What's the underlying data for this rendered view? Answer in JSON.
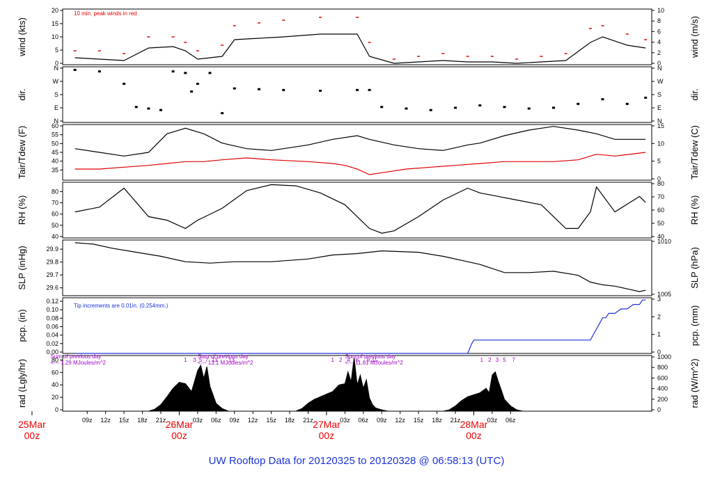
{
  "title": "UW Rooftop Data for 20120325  to  20120328 @ 06:58:13  (UTC)",
  "colors": {
    "peak": "#e00000",
    "dew": "#e00000",
    "precip": "#1a33d6",
    "title": "#1a33d6",
    "annot": "#a000c8"
  },
  "chart_data": [
    {
      "type": "line",
      "id": "wind",
      "ylabel": "wind (kts)",
      "ylabel_right": "wind (m/s)",
      "ylim": [
        0,
        20
      ],
      "yticks": [
        "0",
        "5",
        "10",
        "15",
        "20"
      ],
      "yticks_right": [
        "0",
        "2",
        "4",
        "6",
        "8",
        "10"
      ],
      "annotation": "10 min. peak winds in red",
      "series": [
        {
          "name": "wind",
          "x": [
            0,
            4,
            8,
            12,
            16,
            18,
            20,
            24,
            26,
            30,
            34,
            40,
            46,
            48,
            52,
            56,
            60,
            64,
            68,
            72,
            76,
            80,
            84,
            86,
            90,
            93
          ],
          "y": [
            2.5,
            2,
            1.5,
            6,
            6.5,
            5,
            2,
            3,
            9,
            9.5,
            10,
            11,
            11,
            3,
            0.5,
            1,
            1.5,
            1,
            1,
            0.5,
            1,
            1.5,
            8,
            10,
            7,
            6
          ]
        },
        {
          "name": "peak",
          "x": [
            0,
            4,
            8,
            12,
            16,
            18,
            20,
            24,
            26,
            30,
            34,
            40,
            46,
            48,
            52,
            56,
            60,
            64,
            68,
            72,
            76,
            80,
            84,
            86,
            90,
            93
          ],
          "y": [
            5,
            5,
            4,
            10,
            10,
            8,
            5,
            7,
            14,
            15,
            16,
            17,
            17,
            8,
            2,
            3,
            4,
            3,
            3,
            2,
            3,
            4,
            13,
            14,
            11,
            9
          ]
        }
      ]
    },
    {
      "type": "scatter",
      "id": "dir",
      "ylabel": "dir.",
      "ylabel_right": "dir.",
      "ylim": [
        0,
        360
      ],
      "yticks": [
        "N",
        "E",
        "S",
        "W",
        "N"
      ],
      "yticks_right": [
        "N",
        "E",
        "S",
        "W",
        "N"
      ],
      "series": [
        {
          "name": "dir",
          "x": [
            0,
            4,
            8,
            10,
            12,
            14,
            16,
            18,
            19,
            20,
            22,
            24,
            26,
            30,
            34,
            40,
            46,
            48,
            50,
            54,
            58,
            62,
            66,
            70,
            74,
            78,
            82,
            86,
            90,
            93
          ],
          "y": [
            340,
            330,
            250,
            100,
            90,
            80,
            330,
            320,
            200,
            250,
            320,
            60,
            220,
            215,
            210,
            205,
            210,
            210,
            100,
            90,
            80,
            95,
            110,
            100,
            90,
            95,
            120,
            150,
            120,
            160
          ]
        }
      ]
    },
    {
      "type": "line",
      "id": "temp",
      "ylabel": "Tair/Tdew (F)",
      "ylabel_right": "Tair/Tdew (C)",
      "ylim": [
        30,
        60
      ],
      "yticks": [
        "35",
        "40",
        "45",
        "50",
        "55",
        "60"
      ],
      "yticks_right": [
        "0",
        "5",
        "10",
        "15"
      ],
      "series": [
        {
          "name": "Tair",
          "x": [
            0,
            4,
            8,
            12,
            15,
            18,
            21,
            24,
            28,
            32,
            38,
            42,
            46,
            48,
            52,
            56,
            60,
            64,
            66,
            70,
            74,
            78,
            82,
            85,
            88,
            93
          ],
          "y": [
            47,
            45,
            43,
            45,
            55,
            58,
            55,
            50,
            47,
            46,
            49,
            52,
            54,
            52,
            49,
            47,
            46,
            49,
            50,
            54,
            57,
            59,
            57,
            55,
            52,
            52
          ]
        },
        {
          "name": "Tdew",
          "x": [
            0,
            4,
            8,
            12,
            15,
            18,
            21,
            24,
            28,
            32,
            38,
            42,
            44,
            46,
            48,
            50,
            54,
            58,
            62,
            66,
            70,
            74,
            78,
            82,
            85,
            88,
            93
          ],
          "y": [
            36,
            36,
            37,
            38,
            39,
            40,
            40,
            41,
            42,
            41,
            40,
            39,
            38,
            36,
            33,
            34,
            36,
            37,
            38,
            39,
            40,
            40,
            40,
            41,
            44,
            43,
            45
          ]
        }
      ]
    },
    {
      "type": "line",
      "id": "rh",
      "ylabel": "RH (%)",
      "ylabel_right": "RH (%)",
      "ylim": [
        40,
        87
      ],
      "yticks": [
        "40",
        "50",
        "60",
        "70",
        "80"
      ],
      "yticks_right": [
        "40",
        "50",
        "60",
        "70",
        "80"
      ],
      "series": [
        {
          "name": "RH",
          "x": [
            0,
            4,
            8,
            12,
            15,
            18,
            20,
            22,
            24,
            28,
            32,
            36,
            40,
            44,
            46,
            48,
            50,
            52,
            56,
            60,
            64,
            66,
            68,
            72,
            76,
            78,
            80,
            82,
            84,
            85,
            88,
            92,
            93
          ],
          "y": [
            62,
            66,
            82,
            58,
            55,
            48,
            55,
            60,
            65,
            80,
            85,
            84,
            78,
            68,
            58,
            48,
            44,
            46,
            58,
            72,
            82,
            78,
            76,
            72,
            68,
            58,
            48,
            48,
            62,
            83,
            62,
            75,
            70
          ]
        }
      ]
    },
    {
      "type": "line",
      "id": "slp",
      "ylabel": "SLP (inHg)",
      "ylabel_right": "SLP (hPa)",
      "ylim": [
        29.55,
        29.96
      ],
      "yticks": [
        "29.6",
        "29.7",
        "29.8",
        "29.9"
      ],
      "yticks_right": [
        "1005",
        "1010"
      ],
      "series": [
        {
          "name": "SLP",
          "x": [
            0,
            3,
            6,
            10,
            14,
            18,
            22,
            26,
            32,
            38,
            42,
            46,
            50,
            56,
            60,
            64,
            66,
            70,
            74,
            78,
            82,
            84,
            86,
            88,
            90,
            92,
            93
          ],
          "y": [
            29.94,
            29.93,
            29.9,
            29.87,
            29.84,
            29.8,
            29.79,
            29.8,
            29.8,
            29.82,
            29.85,
            29.86,
            29.88,
            29.87,
            29.84,
            29.8,
            29.78,
            29.72,
            29.72,
            29.73,
            29.7,
            29.65,
            29.63,
            29.62,
            29.6,
            29.58,
            29.59
          ]
        }
      ]
    },
    {
      "type": "line",
      "id": "pcp",
      "ylabel": "pcp. (in)",
      "ylabel_right": "pcp. (mm)",
      "ylim": [
        0,
        0.125
      ],
      "yticks": [
        "0.00",
        "0.02",
        "0.04",
        "0.06",
        "0.08",
        "0.10",
        "0.12"
      ],
      "yticks_right": [
        "0",
        "1",
        "2",
        "3"
      ],
      "annotation": "Tip increments are 0.01in. (0.254mm.)",
      "series": [
        {
          "name": "pcp",
          "x": [
            0,
            64,
            64.3,
            64.6,
            65,
            66,
            84,
            84.4,
            84.8,
            85.2,
            85.6,
            86,
            86.5,
            87,
            88,
            89,
            90,
            91,
            92,
            92.5,
            93
          ],
          "y": [
            0,
            0,
            0.01,
            0.02,
            0.03,
            0.03,
            0.03,
            0.04,
            0.05,
            0.06,
            0.07,
            0.08,
            0.08,
            0.09,
            0.09,
            0.1,
            0.1,
            0.11,
            0.11,
            0.12,
            0.12
          ]
        }
      ]
    },
    {
      "type": "area",
      "id": "rad",
      "ylabel": "rad (Lgly/hr)",
      "ylabel_right": "rad (W/m^2)",
      "ylim": [
        0,
        85
      ],
      "yticks": [
        "0",
        "20",
        "40",
        "60",
        "80"
      ],
      "yticks_right": [
        "0",
        "200",
        "400",
        "600",
        "800",
        "1000"
      ],
      "annotations": [
        {
          "x": 8,
          "row": 0,
          "text": "Sum of previous day"
        },
        {
          "x": 8,
          "row": 1,
          "text": "<--- 1.29 MJoules/m^2"
        },
        {
          "x": 32,
          "row": 0,
          "text": "Sum of previous day"
        },
        {
          "x": 32,
          "row": 1,
          "text": "<--- 13.1 MJoules/m^2"
        },
        {
          "x": 56,
          "row": 0,
          "text": "Sum of previous day"
        },
        {
          "x": 56,
          "row": 1,
          "text": "<--- 11.81 MJoules/m^2"
        }
      ],
      "hour_marks": [
        {
          "x": 18,
          "t": "1"
        },
        {
          "x": 19.5,
          "t": "3"
        },
        {
          "x": 20.5,
          "t": "5"
        },
        {
          "x": 21.5,
          "t": "7"
        },
        {
          "x": 22.8,
          "t": "11"
        },
        {
          "x": 25.5,
          "t": "13"
        },
        {
          "x": 42,
          "t": "1"
        },
        {
          "x": 43.3,
          "t": "2"
        },
        {
          "x": 44.6,
          "t": "4"
        },
        {
          "x": 46,
          "t": "6"
        },
        {
          "x": 47.8,
          "t": "9"
        },
        {
          "x": 48.8,
          "t": "11"
        },
        {
          "x": 66.3,
          "t": "1"
        },
        {
          "x": 67.6,
          "t": "2"
        },
        {
          "x": 68.8,
          "t": "3"
        },
        {
          "x": 70,
          "t": "5"
        },
        {
          "x": 71.5,
          "t": "7"
        }
      ],
      "series": [
        {
          "name": "rad",
          "x": [
            12,
            13,
            14,
            15,
            16,
            17,
            18,
            19,
            20,
            20.5,
            21,
            21.5,
            22,
            23,
            24,
            25,
            36,
            37,
            38,
            39,
            40,
            41,
            42,
            43,
            44,
            44.5,
            45,
            45.5,
            46,
            46.5,
            47,
            47.5,
            48,
            48.5,
            49,
            50,
            51,
            60,
            61,
            62,
            63,
            64,
            65,
            66,
            67,
            67.5,
            68,
            68.5,
            69,
            69.5,
            70,
            71,
            72,
            73
          ],
          "y": [
            0,
            3,
            10,
            22,
            35,
            44,
            42,
            30,
            62,
            70,
            50,
            68,
            38,
            12,
            4,
            0,
            0,
            4,
            12,
            18,
            22,
            26,
            30,
            40,
            42,
            60,
            45,
            82,
            40,
            55,
            35,
            48,
            20,
            10,
            5,
            2,
            0,
            0,
            2,
            8,
            16,
            22,
            25,
            28,
            35,
            28,
            55,
            60,
            45,
            32,
            18,
            8,
            2,
            0
          ]
        }
      ]
    }
  ],
  "x_axis": {
    "xlim": [
      -2,
      94
    ],
    "ticks": [
      {
        "x": 2,
        "t": "09z"
      },
      {
        "x": 5,
        "t": "12z"
      },
      {
        "x": 8,
        "t": "15z"
      },
      {
        "x": 11,
        "t": "18z"
      },
      {
        "x": 14,
        "t": "21z"
      },
      {
        "x": 20,
        "t": "03z"
      },
      {
        "x": 23,
        "t": "06z"
      },
      {
        "x": 26,
        "t": "09z"
      },
      {
        "x": 29,
        "t": "12z"
      },
      {
        "x": 32,
        "t": "15z"
      },
      {
        "x": 35,
        "t": "18z"
      },
      {
        "x": 38,
        "t": "21z"
      },
      {
        "x": 44,
        "t": "03z"
      },
      {
        "x": 47,
        "t": "06z"
      },
      {
        "x": 50,
        "t": "09z"
      },
      {
        "x": 53,
        "t": "12z"
      },
      {
        "x": 56,
        "t": "15z"
      },
      {
        "x": 59,
        "t": "18z"
      },
      {
        "x": 62,
        "t": "21z"
      },
      {
        "x": 68,
        "t": "03z"
      },
      {
        "x": 71,
        "t": "06z"
      }
    ],
    "dates": [
      {
        "x": -7,
        "l1": "25Mar",
        "l2": "00z"
      },
      {
        "x": 17,
        "l1": "26Mar",
        "l2": "00z"
      },
      {
        "x": 41,
        "l1": "27Mar",
        "l2": "00z"
      },
      {
        "x": 65,
        "l1": "28Mar",
        "l2": "00z"
      }
    ]
  }
}
